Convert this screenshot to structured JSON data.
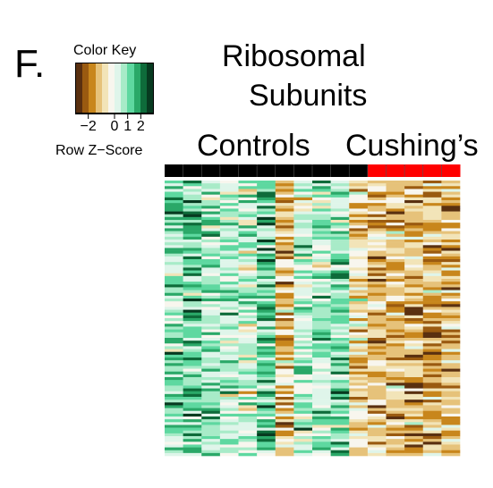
{
  "panel_letter": "F.",
  "color_key": {
    "title": "Color Key",
    "subtitle": "Row Z−Score",
    "ticks": [
      "−2",
      "0",
      "1",
      "2"
    ],
    "tick_values": [
      -2,
      0,
      1,
      2
    ],
    "range": [
      -3,
      3
    ],
    "colors": [
      "#5a3010",
      "#9a5a10",
      "#c8861c",
      "#e6c27a",
      "#f2e4b8",
      "#f8f6ee",
      "#dff5ea",
      "#a8ebc8",
      "#5ed8a0",
      "#2aa868",
      "#0e6b3a",
      "#073a20"
    ]
  },
  "chart_data": {
    "type": "heatmap",
    "title": "Ribosomal Subunits",
    "title_lines": [
      "Ribosomal",
      "Subunits"
    ],
    "groups": [
      {
        "name": "Controls",
        "columns": 11,
        "color": "#000000"
      },
      {
        "name": "Cushing’s",
        "columns": 5,
        "color": "#ff0000"
      }
    ],
    "n_rows": 98,
    "n_cols": 16,
    "value_range": [
      -3,
      3
    ],
    "column_mean_z": [
      0.9,
      1.2,
      0.8,
      0.5,
      0.4,
      1.3,
      -1.1,
      0.5,
      0.7,
      1.1,
      -0.7,
      -1.2,
      -1.3,
      -1.4,
      -1.3,
      -1.2
    ],
    "legend": "Row Z−Score"
  }
}
